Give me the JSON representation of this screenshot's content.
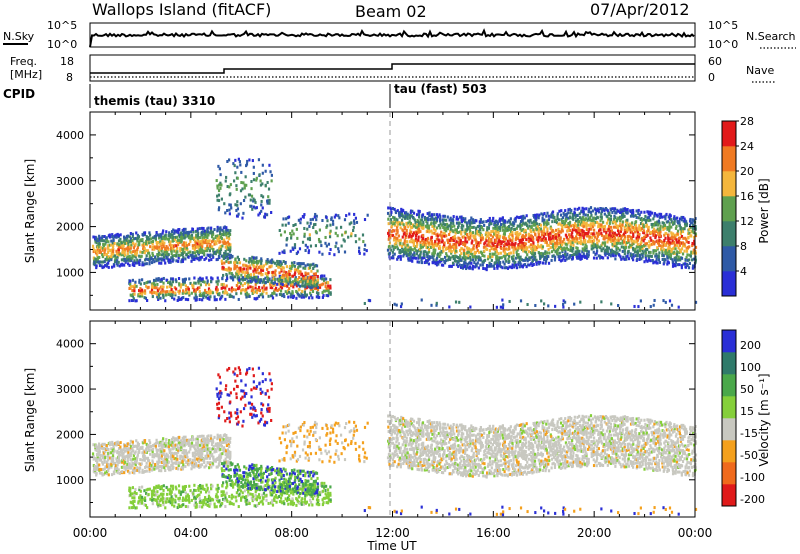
{
  "header": {
    "station": "Wallops Island (fitACF)",
    "beam": "Beam 02",
    "date": "07/Apr/2012"
  },
  "strips": {
    "nsky_label": "N.Sky",
    "nsearch_label": "N.Search",
    "nsky_ticks": [
      "10^5",
      "10^0"
    ],
    "nsearch_ticks": [
      "10^5",
      "10^0"
    ],
    "freq_label_1": "Freq.",
    "freq_label_2": "[MHz]",
    "freq_ticks": [
      "18",
      "8"
    ],
    "nave_label": "Nave",
    "nave_ticks": [
      "60",
      "0"
    ],
    "cpid_label": "CPID",
    "cpid_1": "themis (tau) 3310",
    "cpid_2": "tau (fast) 503"
  },
  "chart_data": [
    {
      "type": "heatmap",
      "panel": "power",
      "xlabel": "Time UT",
      "ylabel": "Slant Range [km]",
      "x_ticks": [
        "00:00",
        "04:00",
        "08:00",
        "12:00",
        "16:00",
        "20:00",
        "00:00"
      ],
      "y_ticks": [
        1000,
        2000,
        3000,
        4000
      ],
      "xlim_hours": [
        0,
        24
      ],
      "ylim_km": [
        180,
        4500
      ],
      "colorbar": {
        "label": "Power [dB]",
        "ticks": [
          4,
          8,
          12,
          16,
          20,
          24,
          28
        ],
        "colors": [
          "#2a2fd6",
          "#2f5aa6",
          "#3d7f6c",
          "#5fa04f",
          "#f4b63c",
          "#f07a22",
          "#e21a1a"
        ]
      },
      "features": [
        {
          "name": "main-band-morning",
          "t": [
            0.1,
            5.6
          ],
          "range_km": [
            1100,
            1800
          ],
          "peak_db": 24
        },
        {
          "name": "low-band-morning",
          "t": [
            1.5,
            9.5
          ],
          "range_km": [
            400,
            900
          ],
          "peak_db": 22
        },
        {
          "name": "main-band-afternoon",
          "t": [
            12.0,
            24.0
          ],
          "range_km": [
            1200,
            2400
          ],
          "peak_db": 26
        }
      ]
    },
    {
      "type": "heatmap",
      "panel": "velocity",
      "xlabel": "Time UT",
      "ylabel": "Slant Range [km]",
      "x_ticks": [
        "00:00",
        "04:00",
        "08:00",
        "12:00",
        "16:00",
        "20:00",
        "00:00"
      ],
      "y_ticks": [
        1000,
        2000,
        3000,
        4000
      ],
      "xlim_hours": [
        0,
        24
      ],
      "ylim_km": [
        180,
        4500
      ],
      "colorbar": {
        "label": "Velocity [m s⁻¹]",
        "ticks": [
          200,
          100,
          50,
          15,
          -15,
          -50,
          -100,
          -200
        ],
        "colors": [
          "#2a2fd6",
          "#2f7a6a",
          "#4aa84a",
          "#85cf3a",
          "#c8c8c0",
          "#f4a01c",
          "#f06a1c",
          "#e01a1a"
        ]
      }
    }
  ]
}
